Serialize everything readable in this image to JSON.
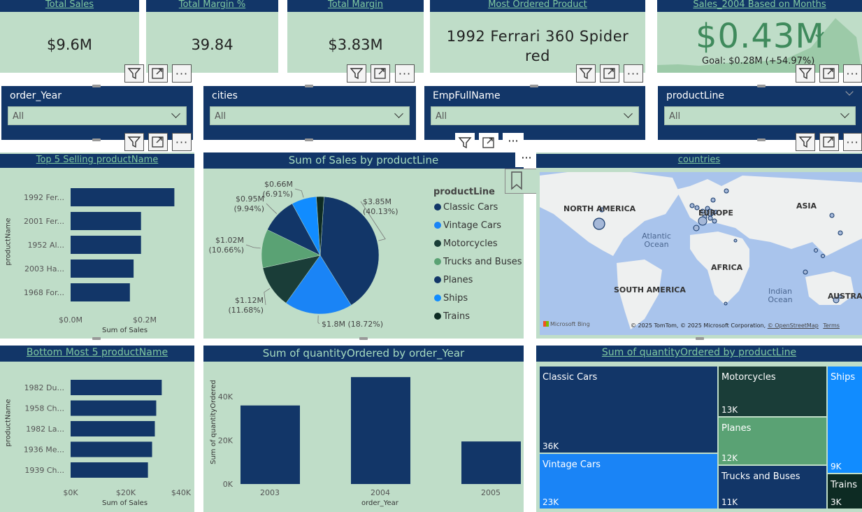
{
  "kpis": [
    {
      "title": "Total Sales",
      "value": "$9.6M"
    },
    {
      "title": "Total Margin %",
      "value": "39.84"
    },
    {
      "title": "Total Margin",
      "value": "$3.83M"
    },
    {
      "title": "Most Ordered Product",
      "value": "1992 Ferrari 360 Spider red"
    }
  ],
  "gauge": {
    "title": "Sales_2004 Based on Months",
    "value": "$0.43M",
    "goal": "Goal: $0.28M (+54.97%)"
  },
  "slicers": [
    {
      "label": "order_Year",
      "value": "All"
    },
    {
      "label": "cities",
      "value": "All"
    },
    {
      "label": "EmpFullName",
      "value": "All"
    },
    {
      "label": "productLine",
      "value": "All"
    }
  ],
  "top5": {
    "title": "Top 5 Selling productName",
    "ylabel": "productName",
    "xlabel": "Sum of Sales",
    "ticks": [
      "$0.0M",
      "$0.2M"
    ]
  },
  "bottom5": {
    "title": "Bottom Most 5 productName",
    "ylabel": "productName",
    "xlabel": "Sum of Sales",
    "ticks": [
      "$0K",
      "$20K",
      "$40K"
    ]
  },
  "pie": {
    "title": "Sum of Sales by productLine",
    "legend_title": "productLine"
  },
  "map": {
    "title": "countries",
    "labels": {
      "na": "NORTH AMERICA",
      "eu": "EUROPE",
      "asia": "ASIA",
      "atl": "Atlantic Ocean",
      "africa": "AFRICA",
      "sa": "SOUTH AMERICA",
      "ind": "Indian Ocean",
      "aus": "AUSTRALIA"
    },
    "credit": "© 2025 TomTom, © 2025 Microsoft Corporation,",
    "osm": "© OpenStreetMap",
    "terms": "Terms",
    "bing": "Microsoft Bing"
  },
  "qty_year": {
    "title": "Sum of quantityOrdered by order_Year",
    "ylabel": "Sum of quantityOrdered",
    "xlabel": "order_Year",
    "yticks": [
      "0K",
      "20K",
      "40K"
    ]
  },
  "treemap": {
    "title": "Sum of quantityOrdered by productLine",
    "cells": [
      {
        "name": "Classic Cars",
        "value": "36K"
      },
      {
        "name": "Vintage Cars",
        "value": "23K"
      },
      {
        "name": "Motorcycles",
        "value": "13K"
      },
      {
        "name": "Planes",
        "value": "12K"
      },
      {
        "name": "Trucks and Buses",
        "value": "11K"
      },
      {
        "name": "Ships",
        "value": "9K"
      },
      {
        "name": "Trains",
        "value": "3K"
      }
    ]
  },
  "chart_data": [
    {
      "type": "bar",
      "title": "Top 5 Selling productName",
      "xlabel": "Sum of Sales",
      "ylabel": "productName",
      "categories": [
        "1992 Fer...",
        "2001 Fer...",
        "1952 Al...",
        "2003 Ha...",
        "1968 For..."
      ],
      "values": [
        0.28,
        0.19,
        0.19,
        0.17,
        0.16
      ],
      "xlim": [
        0,
        0.3
      ]
    },
    {
      "type": "bar",
      "title": "Bottom Most 5 productName",
      "xlabel": "Sum of Sales",
      "ylabel": "productName",
      "categories": [
        "1982 Du...",
        "1958 Ch...",
        "1982 La...",
        "1936 Me...",
        "1939 Ch..."
      ],
      "values": [
        33,
        31,
        30.5,
        29.5,
        28
      ],
      "xlim": [
        0,
        40
      ]
    },
    {
      "type": "pie",
      "title": "Sum of Sales by productLine",
      "categories": [
        "Classic Cars",
        "Vintage Cars",
        "Motorcycles",
        "Trucks and Buses",
        "Planes",
        "Ships",
        "Trains"
      ],
      "values": [
        3.85,
        1.8,
        1.12,
        1.02,
        0.95,
        0.66,
        0.2
      ],
      "labels": [
        "$3.85M (40.13%)",
        "$1.8M (18.72%)",
        "$1.12M (11.68%)",
        "$1.02M (10.66%)",
        "$0.95M (9.94%)",
        "$0.66M (6.91%)",
        ""
      ],
      "colors": [
        "#123668",
        "#1a84f6",
        "#1a3d38",
        "#5aa274",
        "#123668",
        "#118cff",
        "#0d2b23"
      ]
    },
    {
      "type": "bar",
      "title": "Sum of quantityOrdered by order_Year",
      "xlabel": "order_Year",
      "ylabel": "Sum of quantityOrdered",
      "categories": [
        "2003",
        "2004",
        "2005"
      ],
      "values": [
        36000,
        49000,
        19500
      ],
      "ylim": [
        0,
        50000
      ]
    }
  ]
}
